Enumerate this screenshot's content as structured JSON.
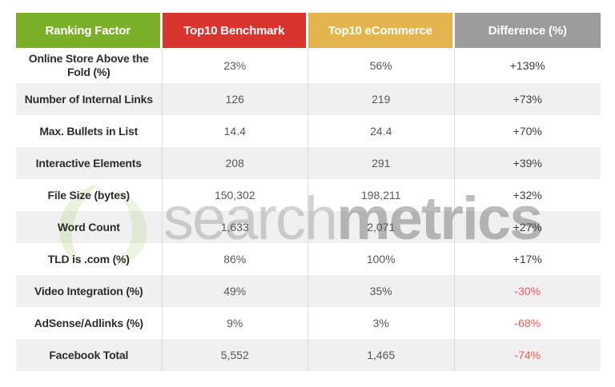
{
  "chart_data": {
    "type": "table",
    "title": "Ranking Factor comparison: Top10 Benchmark vs Top10 eCommerce",
    "columns": [
      "Ranking Factor",
      "Top10 Benchmark",
      "Top10 eCommerce",
      "Difference (%)"
    ],
    "rows": [
      [
        "Online Store Above the Fold (%)",
        "23%",
        "56%",
        "+139%"
      ],
      [
        "Number of Internal Links",
        "126",
        "219",
        "+73%"
      ],
      [
        "Max. Bullets in List",
        "14.4",
        "24.4",
        "+70%"
      ],
      [
        "Interactive Elements",
        "208",
        "291",
        "+39%"
      ],
      [
        "File Size (bytes)",
        "150,302",
        "198,211",
        "+32%"
      ],
      [
        "Word Count",
        "1,633",
        "2,071",
        "+27%"
      ],
      [
        "TLD is .com (%)",
        "86%",
        "100%",
        "+17%"
      ],
      [
        "Video Integration (%)",
        "49%",
        "35%",
        "-30%"
      ],
      [
        "AdSense/Adlinks (%)",
        "9%",
        "3%",
        "-68%"
      ],
      [
        "Facebook Total",
        "5,552",
        "1,465",
        "-74%"
      ]
    ]
  },
  "table": {
    "headers": [
      {
        "label": "Ranking Factor",
        "slug": "ranking-factor",
        "color": "#7cb028"
      },
      {
        "label": "Top10 Benchmark",
        "slug": "top10-benchmark",
        "color": "#d9342e"
      },
      {
        "label": "Top10 eCommerce",
        "slug": "top10-ecommerce",
        "color": "#e3b54d"
      },
      {
        "label": "Difference (%)",
        "slug": "difference",
        "color": "#9c9c9c"
      }
    ],
    "rows": [
      {
        "factor": "Online Store Above the Fold (%)",
        "benchmark": "23%",
        "ecommerce": "56%",
        "difference": "+139%",
        "negative": false
      },
      {
        "factor": "Number of Internal Links",
        "benchmark": "126",
        "ecommerce": "219",
        "difference": "+73%",
        "negative": false
      },
      {
        "factor": "Max. Bullets in List",
        "benchmark": "14.4",
        "ecommerce": "24.4",
        "difference": "+70%",
        "negative": false
      },
      {
        "factor": "Interactive Elements",
        "benchmark": "208",
        "ecommerce": "291",
        "difference": "+39%",
        "negative": false
      },
      {
        "factor": "File Size (bytes)",
        "benchmark": "150,302",
        "ecommerce": "198,211",
        "difference": "+32%",
        "negative": false
      },
      {
        "factor": "Word Count",
        "benchmark": "1,633",
        "ecommerce": "2,071",
        "difference": "+27%",
        "negative": false
      },
      {
        "factor": "TLD is .com (%)",
        "benchmark": "86%",
        "ecommerce": "100%",
        "difference": "+17%",
        "negative": false
      },
      {
        "factor": "Video Integration (%)",
        "benchmark": "49%",
        "ecommerce": "35%",
        "difference": "-30%",
        "negative": true
      },
      {
        "factor": "AdSense/Adlinks (%)",
        "benchmark": "9%",
        "ecommerce": "3%",
        "difference": "-68%",
        "negative": true
      },
      {
        "factor": "Facebook Total",
        "benchmark": "5,552",
        "ecommerce": "1,465",
        "difference": "-74%",
        "negative": true
      }
    ]
  },
  "watermark": {
    "text_light": "search",
    "text_bold": "metrics",
    "icon": "searchmetrics-swirl-icon"
  },
  "colors": {
    "row_alt_background": "#f0f0f0",
    "column_divider": "#dddddd",
    "label_text": "#2d2d2d",
    "value_text": "#585858",
    "difference_positive": "#3e3e3e",
    "difference_negative": "#f25b57",
    "watermark_green": "#9cc25b"
  }
}
